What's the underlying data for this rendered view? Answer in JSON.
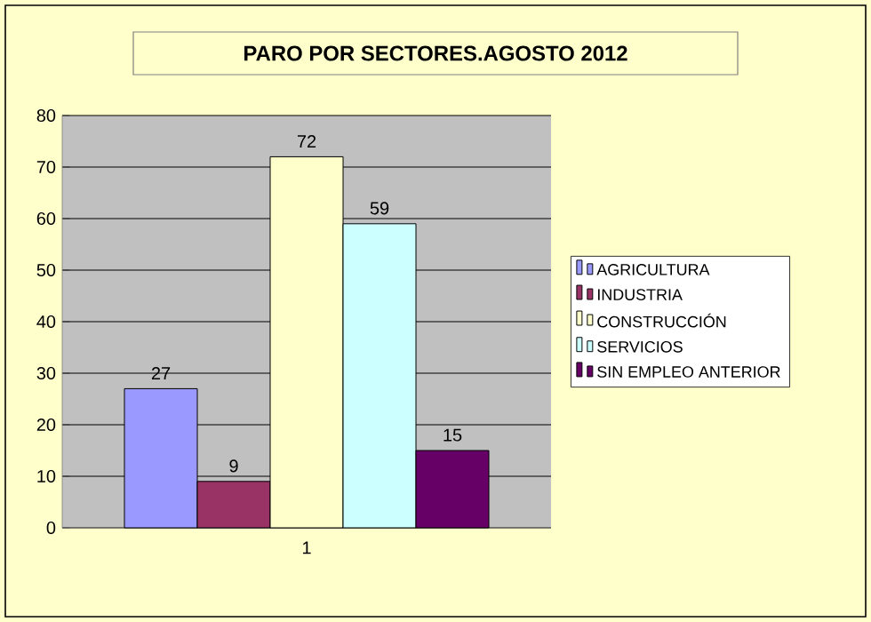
{
  "chart_data": {
    "type": "bar",
    "title": "PARO POR SECTORES.AGOSTO 2012",
    "categories": [
      "1"
    ],
    "series": [
      {
        "name": "AGRICULTURA",
        "color": "#9999ff",
        "values": [
          27
        ]
      },
      {
        "name": "INDUSTRIA",
        "color": "#993366",
        "values": [
          9
        ]
      },
      {
        "name": "CONSTRUCCIÓN",
        "color": "#ffffcc",
        "values": [
          72
        ]
      },
      {
        "name": "SERVICIOS",
        "color": "#ccffff",
        "values": [
          59
        ]
      },
      {
        "name": "SIN EMPLEO ANTERIOR",
        "color": "#660066",
        "values": [
          15
        ]
      }
    ],
    "ylim": [
      0,
      80
    ],
    "yticks": [
      0,
      10,
      20,
      30,
      40,
      50,
      60,
      70,
      80
    ],
    "grid": "y",
    "legend": "right",
    "data_labels": true
  }
}
